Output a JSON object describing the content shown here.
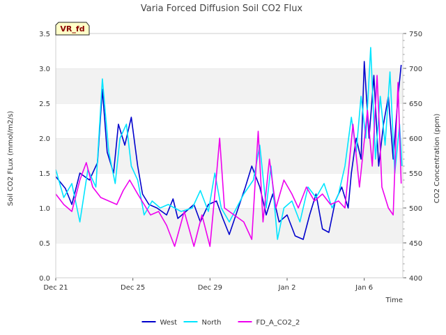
{
  "chart_data": {
    "type": "line",
    "title": "Varia Forced Diffusion Soil CO2 Flux",
    "badge": "VR_fd",
    "xlabel": "Time",
    "ylabel": "Soil CO2 FLux (mmol/m2/s)",
    "ylabel_right": "CO2 Concentration (ppm)",
    "xlim": [
      "2022-12-21",
      "2023-01-08"
    ],
    "ylim": [
      0,
      3.5
    ],
    "ylim_right": [
      400,
      750
    ],
    "x_ticks": [
      {
        "date": "2022-12-21",
        "label": "Dec 21"
      },
      {
        "date": "2022-12-25",
        "label": "Dec 25"
      },
      {
        "date": "2022-12-29",
        "label": "Dec 29"
      },
      {
        "date": "2023-01-02",
        "label": "Jan 2"
      },
      {
        "date": "2023-01-06",
        "label": "Jan 6"
      }
    ],
    "y_ticks": [
      "0.0",
      "0.5",
      "1.0",
      "1.5",
      "2.0",
      "2.5",
      "3.0",
      "3.5"
    ],
    "y_ticks_right": [
      "400",
      "450",
      "500",
      "550",
      "600",
      "650",
      "700",
      "750"
    ],
    "grid": "horizontal bands",
    "legend_position": "bottom-center",
    "series": [
      {
        "name": "West",
        "color": "#0000cc",
        "axis": "left",
        "points": [
          [
            "2022-12-21 00:00",
            1.45
          ],
          [
            "2022-12-21 12:00",
            1.28
          ],
          [
            "2022-12-21 20:00",
            1.05
          ],
          [
            "2022-12-22 06:00",
            1.5
          ],
          [
            "2022-12-22 18:00",
            1.4
          ],
          [
            "2022-12-23 04:00",
            1.65
          ],
          [
            "2022-12-23 10:00",
            2.7
          ],
          [
            "2022-12-23 16:00",
            1.8
          ],
          [
            "2022-12-24 00:00",
            1.5
          ],
          [
            "2022-12-24 06:00",
            2.2
          ],
          [
            "2022-12-24 14:00",
            1.9
          ],
          [
            "2022-12-24 22:00",
            2.3
          ],
          [
            "2022-12-25 06:00",
            1.6
          ],
          [
            "2022-12-25 12:00",
            1.2
          ],
          [
            "2022-12-25 20:00",
            1.05
          ],
          [
            "2022-12-26 06:00",
            1.0
          ],
          [
            "2022-12-26 18:00",
            0.9
          ],
          [
            "2022-12-27 02:00",
            1.13
          ],
          [
            "2022-12-27 08:00",
            0.85
          ],
          [
            "2022-12-28 04:00",
            1.05
          ],
          [
            "2022-12-28 12:00",
            0.8
          ],
          [
            "2022-12-28 22:00",
            1.05
          ],
          [
            "2022-12-29 08:00",
            1.1
          ],
          [
            "2022-12-29 16:00",
            0.85
          ],
          [
            "2022-12-30 00:00",
            0.62
          ],
          [
            "2022-12-30 20:00",
            1.3
          ],
          [
            "2022-12-31 04:00",
            1.6
          ],
          [
            "2022-12-31 14:00",
            1.3
          ],
          [
            "2022-12-31 22:00",
            0.9
          ],
          [
            "2023-01-01 06:00",
            1.2
          ],
          [
            "2023-01-01 14:00",
            0.8
          ],
          [
            "2023-01-02 00:00",
            0.9
          ],
          [
            "2023-01-02 10:00",
            0.6
          ],
          [
            "2023-01-02 20:00",
            0.55
          ],
          [
            "2023-01-03 04:00",
            0.9
          ],
          [
            "2023-01-03 12:00",
            1.2
          ],
          [
            "2023-01-03 20:00",
            0.7
          ],
          [
            "2023-01-04 04:00",
            0.65
          ],
          [
            "2023-01-04 12:00",
            1.1
          ],
          [
            "2023-01-04 20:00",
            1.3
          ],
          [
            "2023-01-05 04:00",
            1.0
          ],
          [
            "2023-01-05 08:00",
            1.5
          ],
          [
            "2023-01-05 14:00",
            2.0
          ],
          [
            "2023-01-05 20:00",
            1.7
          ],
          [
            "2023-01-06 00:00",
            3.1
          ],
          [
            "2023-01-06 06:00",
            2.0
          ],
          [
            "2023-01-06 12:00",
            2.9
          ],
          [
            "2023-01-06 18:00",
            1.6
          ],
          [
            "2023-01-07 00:00",
            2.2
          ],
          [
            "2023-01-07 06:00",
            2.6
          ],
          [
            "2023-01-07 12:00",
            1.7
          ],
          [
            "2023-01-07 18:00",
            2.6
          ],
          [
            "2023-01-07 22:00",
            3.05
          ]
        ]
      },
      {
        "name": "North",
        "color": "#00e5ff",
        "axis": "left",
        "points": [
          [
            "2022-12-21 00:00",
            1.55
          ],
          [
            "2022-12-21 10:00",
            1.15
          ],
          [
            "2022-12-21 20:00",
            1.35
          ],
          [
            "2022-12-22 06:00",
            0.8
          ],
          [
            "2022-12-22 16:00",
            1.55
          ],
          [
            "2022-12-23 02:00",
            1.3
          ],
          [
            "2022-12-23 10:00",
            2.85
          ],
          [
            "2022-12-23 18:00",
            1.8
          ],
          [
            "2022-12-24 02:00",
            1.35
          ],
          [
            "2022-12-24 08:00",
            2.0
          ],
          [
            "2022-12-24 16:00",
            2.2
          ],
          [
            "2022-12-24 22:00",
            1.6
          ],
          [
            "2022-12-25 06:00",
            1.4
          ],
          [
            "2022-12-25 14:00",
            0.9
          ],
          [
            "2022-12-26 00:00",
            1.1
          ],
          [
            "2022-12-26 10:00",
            1.0
          ],
          [
            "2022-12-26 20:00",
            1.05
          ],
          [
            "2022-12-27 04:00",
            1.0
          ],
          [
            "2022-12-27 12:00",
            0.95
          ],
          [
            "2022-12-28 02:00",
            1.0
          ],
          [
            "2022-12-28 12:00",
            1.25
          ],
          [
            "2022-12-28 22:00",
            0.95
          ],
          [
            "2022-12-29 06:00",
            1.5
          ],
          [
            "2022-12-29 14:00",
            1.0
          ],
          [
            "2022-12-30 00:00",
            0.8
          ],
          [
            "2022-12-30 18:00",
            1.2
          ],
          [
            "2022-12-31 06:00",
            1.4
          ],
          [
            "2022-12-31 14:00",
            1.9
          ],
          [
            "2022-12-31 22:00",
            1.0
          ],
          [
            "2023-01-01 04:00",
            1.6
          ],
          [
            "2023-01-01 12:00",
            0.55
          ],
          [
            "2023-01-01 20:00",
            1.0
          ],
          [
            "2023-01-02 06:00",
            1.1
          ],
          [
            "2023-01-02 16:00",
            0.8
          ],
          [
            "2023-01-03 02:00",
            1.3
          ],
          [
            "2023-01-03 12:00",
            1.15
          ],
          [
            "2023-01-03 22:00",
            1.35
          ],
          [
            "2023-01-04 08:00",
            1.0
          ],
          [
            "2023-01-04 16:00",
            1.2
          ],
          [
            "2023-01-05 00:00",
            1.6
          ],
          [
            "2023-01-05 08:00",
            2.3
          ],
          [
            "2023-01-05 14:00",
            1.8
          ],
          [
            "2023-01-05 20:00",
            2.6
          ],
          [
            "2023-01-06 02:00",
            2.0
          ],
          [
            "2023-01-06 08:00",
            3.3
          ],
          [
            "2023-01-06 14:00",
            1.7
          ],
          [
            "2023-01-06 20:00",
            2.6
          ],
          [
            "2023-01-07 02:00",
            1.9
          ],
          [
            "2023-01-07 08:00",
            2.95
          ],
          [
            "2023-01-07 14:00",
            1.5
          ],
          [
            "2023-01-07 20:00",
            2.2
          ],
          [
            "2023-01-07 23:00",
            1.6
          ]
        ]
      },
      {
        "name": "FD_A_CO2_2",
        "color": "#ee00ee",
        "axis": "right",
        "points": [
          [
            "2022-12-21 00:00",
            520
          ],
          [
            "2022-12-21 10:00",
            505
          ],
          [
            "2022-12-21 20:00",
            495
          ],
          [
            "2022-12-22 06:00",
            540
          ],
          [
            "2022-12-22 14:00",
            565
          ],
          [
            "2022-12-22 22:00",
            530
          ],
          [
            "2022-12-23 08:00",
            515
          ],
          [
            "2022-12-23 18:00",
            510
          ],
          [
            "2022-12-24 04:00",
            505
          ],
          [
            "2022-12-24 12:00",
            525
          ],
          [
            "2022-12-24 20:00",
            540
          ],
          [
            "2022-12-25 06:00",
            520
          ],
          [
            "2022-12-25 14:00",
            505
          ],
          [
            "2022-12-25 22:00",
            490
          ],
          [
            "2022-12-26 08:00",
            495
          ],
          [
            "2022-12-26 18:00",
            475
          ],
          [
            "2022-12-27 04:00",
            445
          ],
          [
            "2022-12-27 16:00",
            495
          ],
          [
            "2022-12-28 04:00",
            445
          ],
          [
            "2022-12-28 14:00",
            490
          ],
          [
            "2022-12-29 00:00",
            445
          ],
          [
            "2022-12-29 06:00",
            520
          ],
          [
            "2022-12-29 12:00",
            600
          ],
          [
            "2022-12-29 18:00",
            500
          ],
          [
            "2022-12-30 06:00",
            490
          ],
          [
            "2022-12-30 18:00",
            480
          ],
          [
            "2022-12-31 04:00",
            455
          ],
          [
            "2022-12-31 12:00",
            610
          ],
          [
            "2022-12-31 18:00",
            480
          ],
          [
            "2023-01-01 02:00",
            570
          ],
          [
            "2023-01-01 10:00",
            500
          ],
          [
            "2023-01-01 20:00",
            540
          ],
          [
            "2023-01-02 06:00",
            520
          ],
          [
            "2023-01-02 14:00",
            500
          ],
          [
            "2023-01-03 00:00",
            530
          ],
          [
            "2023-01-03 10:00",
            510
          ],
          [
            "2023-01-03 20:00",
            520
          ],
          [
            "2023-01-04 06:00",
            505
          ],
          [
            "2023-01-04 16:00",
            510
          ],
          [
            "2023-01-05 00:00",
            500
          ],
          [
            "2023-01-05 10:00",
            620
          ],
          [
            "2023-01-05 18:00",
            530
          ],
          [
            "2023-01-06 04:00",
            640
          ],
          [
            "2023-01-06 10:00",
            560
          ],
          [
            "2023-01-06 16:00",
            690
          ],
          [
            "2023-01-06 22:00",
            530
          ],
          [
            "2023-01-07 06:00",
            500
          ],
          [
            "2023-01-07 12:00",
            490
          ],
          [
            "2023-01-07 18:00",
            680
          ],
          [
            "2023-01-07 22:00",
            535
          ]
        ]
      }
    ]
  }
}
